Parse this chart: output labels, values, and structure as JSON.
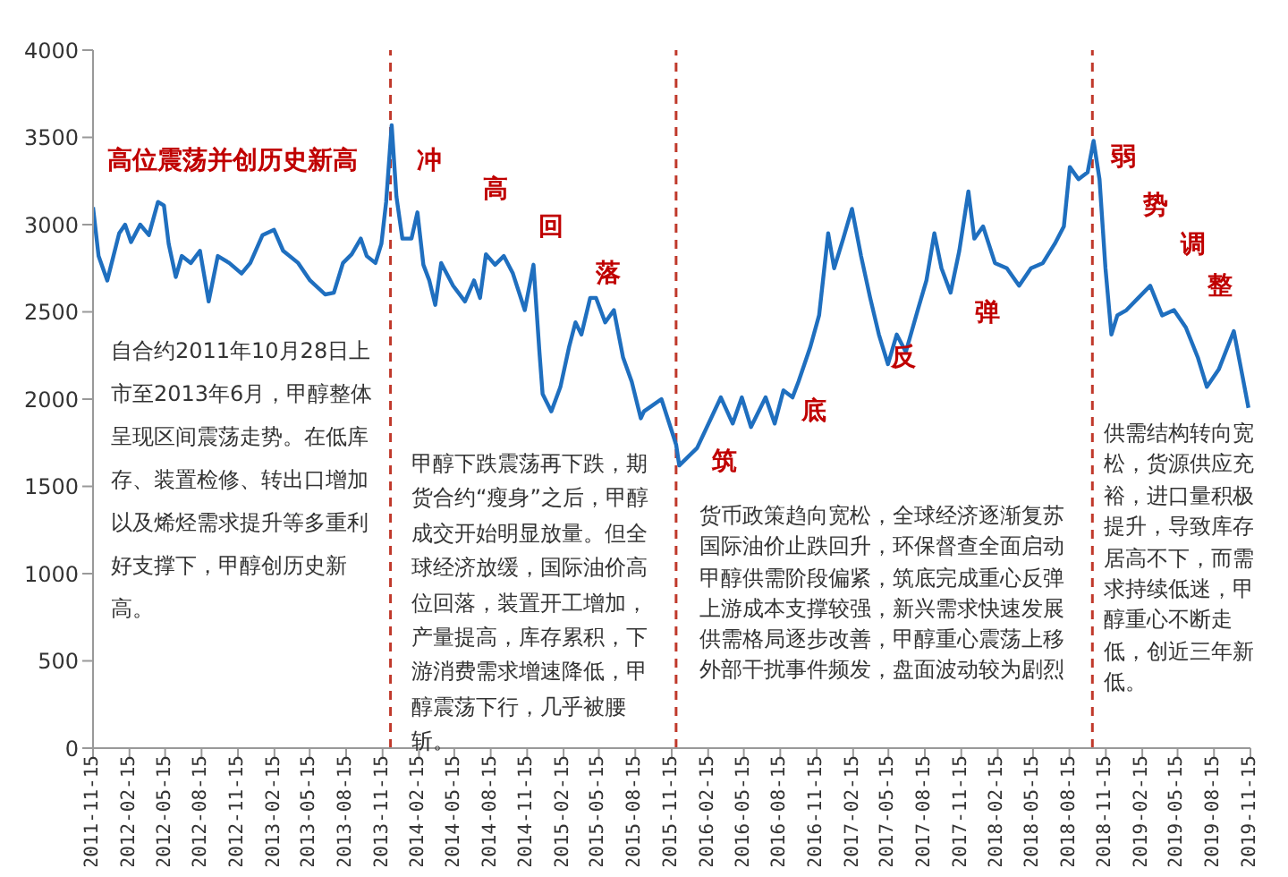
{
  "chart_data": {
    "type": "line",
    "x": [
      "2011-11-15",
      "2011-11-29",
      "2011-12-21",
      "2012-01-20",
      "2012-02-04",
      "2012-02-19",
      "2012-03-13",
      "2012-04-04",
      "2012-04-27",
      "2012-05-12",
      "2012-05-24",
      "2012-06-11",
      "2012-06-26",
      "2012-07-19",
      "2012-08-11",
      "2012-09-02",
      "2012-09-25",
      "2012-10-24",
      "2012-11-24",
      "2012-12-16",
      "2013-01-16",
      "2013-02-14",
      "2013-03-09",
      "2013-04-16",
      "2013-05-16",
      "2013-06-23",
      "2013-07-15",
      "2013-08-07",
      "2013-08-29",
      "2013-09-21",
      "2013-10-06",
      "2013-10-28",
      "2013-11-12",
      "2013-11-24",
      "2013-12-08",
      "2013-12-20",
      "2014-01-04",
      "2014-01-27",
      "2014-02-11",
      "2014-02-26",
      "2014-03-13",
      "2014-03-28",
      "2014-04-12",
      "2014-05-12",
      "2014-06-11",
      "2014-07-04",
      "2014-07-19",
      "2014-08-03",
      "2014-08-26",
      "2014-09-17",
      "2014-10-10",
      "2014-11-09",
      "2014-12-01",
      "2014-12-16",
      "2014-12-24",
      "2015-01-15",
      "2015-02-07",
      "2015-03-01",
      "2015-03-17",
      "2015-04-01",
      "2015-04-23",
      "2015-05-08",
      "2015-05-31",
      "2015-06-22",
      "2015-07-15",
      "2015-08-06",
      "2015-08-29",
      "2015-09-06",
      "2015-10-20",
      "2015-11-26",
      "2015-12-04",
      "2016-01-18",
      "2016-03-18",
      "2016-04-17",
      "2016-05-10",
      "2016-06-02",
      "2016-07-09",
      "2016-08-01",
      "2016-08-23",
      "2016-09-15",
      "2016-09-30",
      "2016-10-30",
      "2016-11-21",
      "2016-12-14",
      "2016-12-29",
      "2017-01-21",
      "2017-02-12",
      "2017-03-07",
      "2017-03-30",
      "2017-04-21",
      "2017-05-14",
      "2017-06-05",
      "2017-06-28",
      "2017-07-28",
      "2017-08-19",
      "2017-09-08",
      "2017-09-26",
      "2017-10-19",
      "2017-11-10",
      "2017-12-03",
      "2017-12-18",
      "2018-01-09",
      "2018-02-08",
      "2018-03-10",
      "2018-04-10",
      "2018-05-10",
      "2018-06-09",
      "2018-07-09",
      "2018-08-01",
      "2018-08-16",
      "2018-09-07",
      "2018-09-30",
      "2018-10-15",
      "2018-10-30",
      "2018-11-14",
      "2018-11-29",
      "2018-12-14",
      "2019-01-06",
      "2019-02-05",
      "2019-03-07",
      "2019-04-06",
      "2019-05-06",
      "2019-06-05",
      "2019-07-05",
      "2019-07-28",
      "2019-08-27",
      "2019-10-04",
      "2019-10-26",
      "2019-11-10"
    ],
    "series": [
      {
        "color": "#1f6fbf",
        "values": [
          3100,
          2820,
          2680,
          2950,
          3000,
          2900,
          3000,
          2940,
          3130,
          3110,
          2890,
          2700,
          2820,
          2780,
          2850,
          2560,
          2820,
          2780,
          2720,
          2780,
          2940,
          2970,
          2850,
          2780,
          2680,
          2600,
          2610,
          2780,
          2830,
          2920,
          2820,
          2780,
          2890,
          3130,
          3570,
          3160,
          2920,
          2920,
          3070,
          2770,
          2680,
          2540,
          2780,
          2650,
          2560,
          2680,
          2580,
          2830,
          2770,
          2820,
          2720,
          2510,
          2770,
          2270,
          2030,
          1930,
          2070,
          2300,
          2440,
          2370,
          2580,
          2580,
          2440,
          2510,
          2240,
          2100,
          1890,
          1930,
          2000,
          1740,
          1620,
          1720,
          2010,
          1860,
          2010,
          1840,
          2010,
          1860,
          2050,
          2010,
          2100,
          2300,
          2480,
          2950,
          2750,
          2920,
          3090,
          2820,
          2580,
          2370,
          2200,
          2370,
          2270,
          2510,
          2680,
          2950,
          2750,
          2610,
          2850,
          3190,
          2920,
          2990,
          2780,
          2750,
          2650,
          2750,
          2780,
          2890,
          2990,
          3330,
          3260,
          3300,
          3480,
          3260,
          2750,
          2370,
          2480,
          2510,
          2580,
          2650,
          2480,
          2510,
          2410,
          2240,
          2070,
          2170,
          2390,
          2130,
          1950
        ]
      }
    ],
    "xlim": [
      "2011-11-15",
      "2019-11-15"
    ],
    "xticks": [
      "2011-11-15",
      "2012-02-15",
      "2012-05-15",
      "2012-08-15",
      "2012-11-15",
      "2013-02-15",
      "2013-05-15",
      "2013-08-15",
      "2013-11-15",
      "2014-02-15",
      "2014-05-15",
      "2014-08-15",
      "2014-11-15",
      "2015-02-15",
      "2015-05-15",
      "2015-08-15",
      "2015-11-15",
      "2016-02-15",
      "2016-05-15",
      "2016-08-15",
      "2016-11-15",
      "2017-02-15",
      "2017-05-15",
      "2017-08-15",
      "2017-11-15",
      "2018-02-15",
      "2018-05-15",
      "2018-08-15",
      "2018-11-15",
      "2019-02-15",
      "2019-05-15",
      "2019-08-15",
      "2019-11-15"
    ],
    "ylim": [
      0,
      4000
    ],
    "yticks": [
      0,
      500,
      1000,
      1500,
      2000,
      2500,
      3000,
      3500,
      4000
    ],
    "ref_lines": [
      {
        "axis": "x",
        "value": "2013-12-05",
        "color": "#c0392b",
        "line_style": "dashed"
      },
      {
        "axis": "x",
        "value": "2015-11-26",
        "color": "#c0392b",
        "line_style": "dashed"
      },
      {
        "axis": "x",
        "value": "2018-10-12",
        "color": "#c0392b",
        "line_style": "dashed"
      }
    ],
    "annotations": [
      "高位震荡并创历史新高",
      "自合约2011年10月28日上市至2013年6月，甲醇整体呈现区间震荡走势。在低库存、装置检修、转出口增加以及烯烃需求提升等多重利好支撑下，甲醇创历史新高。",
      "甲醇下跌震荡再下跌，期货合约“瘦身”之后，甲醇成交开始明显放量。但全球经济放缓，国际油价高位回落，装置开工增加，产量提高，库存累积，下游消费需求增速降低，甲醇震荡下行，几乎被腰斩。",
      "货币政策趋向宽松，全球经济逐渐复苏国际油价止跌回升，环保督查全面启动甲醇供需阶段偏紧，筑底完成重心反弹上游成本支撑较强，新兴需求快速发展供需格局逐步改善，甲醇重心震荡上移外部干扰事件频发，盘面波动较为剧烈",
      "供需结构转向宽松，货源供应充裕，进口量积极提升，导致库存居高不下，而需求持续低迷，甲醇重心不断走低，创近三年新低。",
      "冲",
      "高",
      "回",
      "落",
      "筑",
      "底",
      "反",
      "弹",
      "弱",
      "势",
      "调",
      "整"
    ]
  }
}
